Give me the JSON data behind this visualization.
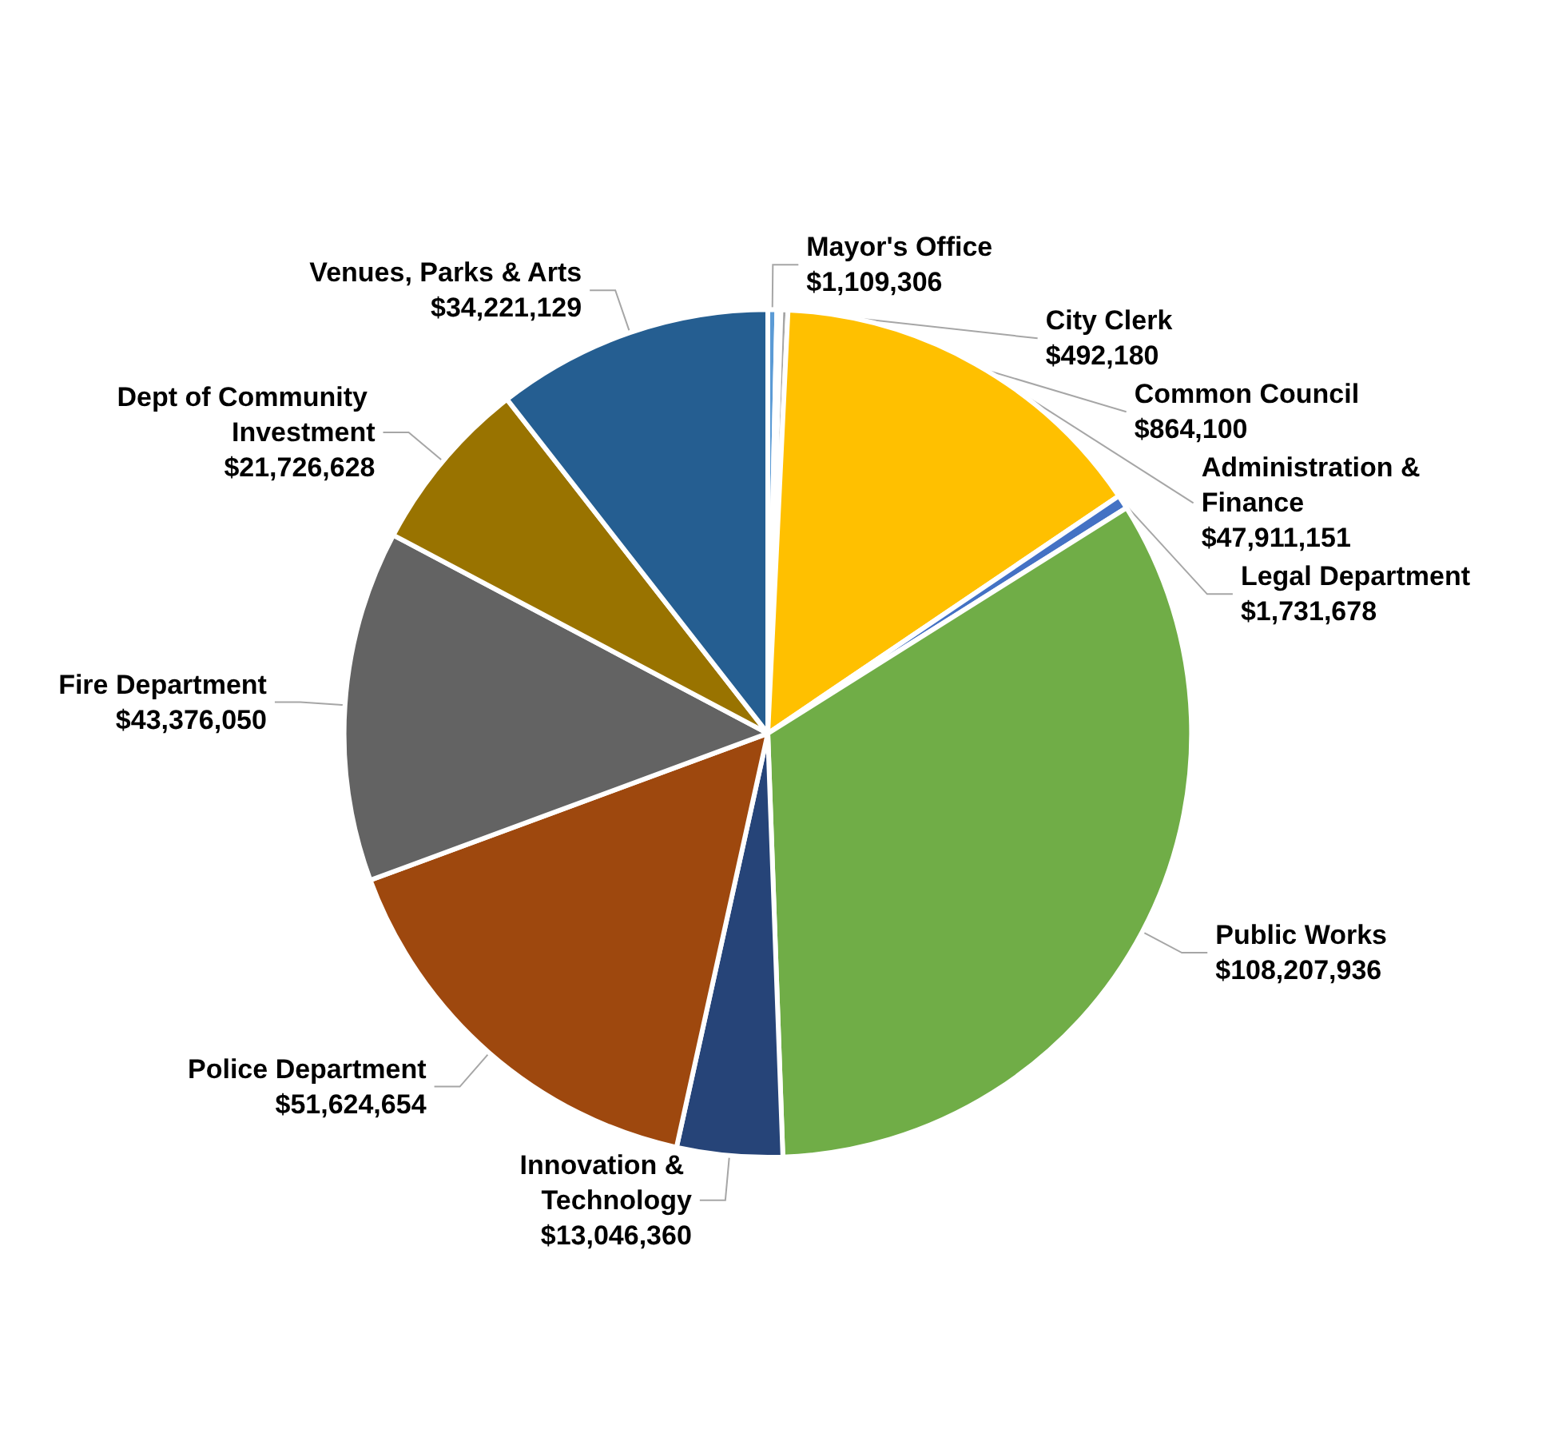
{
  "chart_data": {
    "type": "pie",
    "categories": [
      "Mayor's Office",
      "City Clerk",
      "Common Council",
      "Administration & Finance",
      "Legal Department",
      "Public Works",
      "Innovation & Technology",
      "Police Department",
      "Fire Department",
      "Dept of Community Investment",
      "Venues, Parks & Arts"
    ],
    "values": [
      1109306,
      492180,
      864100,
      47911151,
      1731678,
      108207936,
      13046360,
      51624654,
      43376050,
      21726628,
      34221129
    ],
    "value_labels": [
      "$1,109,306",
      "$492,180",
      "$864,100",
      "$47,911,151",
      "$1,731,678",
      "$108,207,936",
      "$13,046,360",
      "$51,624,654",
      "$43,376,050",
      "$21,726,628",
      "$34,221,129"
    ],
    "colors": [
      "#5b9bd5",
      "#ed7d31",
      "#a5a5a5",
      "#ffc000",
      "#4472c4",
      "#70ad47",
      "#264478",
      "#9e480e",
      "#636363",
      "#997300",
      "#255e91"
    ],
    "legend": false
  }
}
